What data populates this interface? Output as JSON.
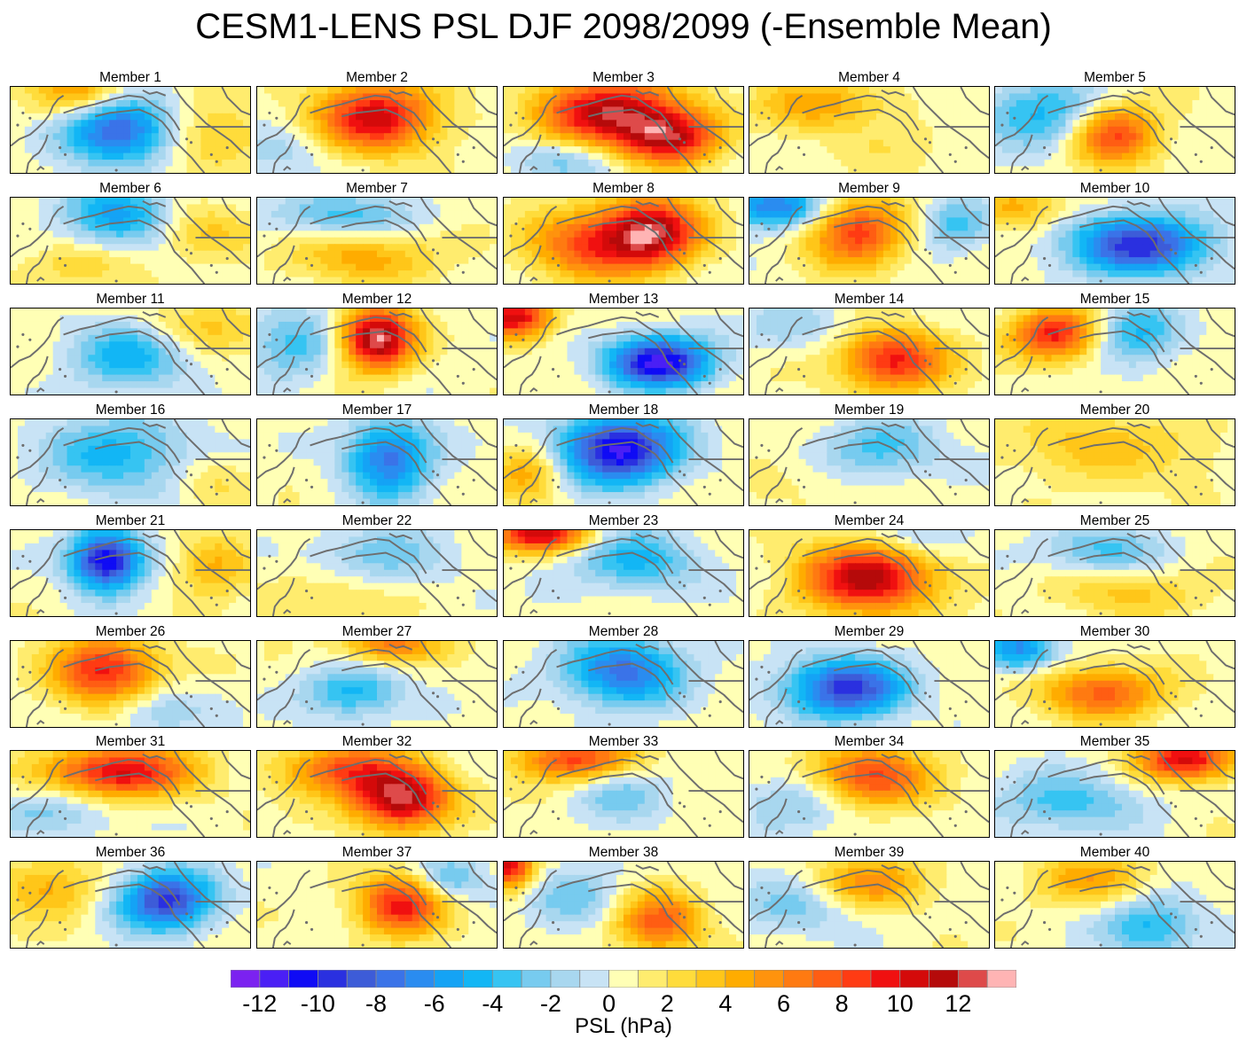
{
  "title": "CESM1-LENS PSL DJF 2098/2099 (-Ensemble Mean)",
  "map_region": "North Pacific / Alaska / western North America",
  "coastline_color": "#6e6e6e",
  "panels": [
    {
      "label": "Member 1",
      "anomalies": [
        {
          "lon": 0.45,
          "lat": 0.5,
          "value": -9,
          "sx": 0.22,
          "sy": 0.4
        },
        {
          "lon": 0.3,
          "lat": 0.05,
          "value": 5,
          "sx": 0.2,
          "sy": 0.3
        },
        {
          "lon": 0.85,
          "lat": 0.6,
          "value": 3,
          "sx": 0.2,
          "sy": 0.4
        }
      ]
    },
    {
      "label": "Member 2",
      "anomalies": [
        {
          "lon": 0.5,
          "lat": 0.35,
          "value": 10,
          "sx": 0.25,
          "sy": 0.4
        },
        {
          "lon": 0.1,
          "lat": 0.8,
          "value": -2,
          "sx": 0.2,
          "sy": 0.3
        }
      ]
    },
    {
      "label": "Member 3",
      "anomalies": [
        {
          "lon": 0.45,
          "lat": 0.3,
          "value": 11,
          "sx": 0.3,
          "sy": 0.4
        },
        {
          "lon": 0.7,
          "lat": 0.6,
          "value": 9,
          "sx": 0.2,
          "sy": 0.3
        },
        {
          "lon": 0.25,
          "lat": 0.85,
          "value": -3,
          "sx": 0.25,
          "sy": 0.25
        }
      ]
    },
    {
      "label": "Member 4",
      "anomalies": [
        {
          "lon": 0.3,
          "lat": 0.2,
          "value": 4,
          "sx": 0.3,
          "sy": 0.3
        },
        {
          "lon": 0.6,
          "lat": 0.7,
          "value": 1,
          "sx": 0.3,
          "sy": 0.3
        },
        {
          "lon": 0.9,
          "lat": 0.2,
          "value": -1,
          "sx": 0.15,
          "sy": 0.3
        }
      ]
    },
    {
      "label": "Member 5",
      "anomalies": [
        {
          "lon": 0.5,
          "lat": 0.55,
          "value": 8,
          "sx": 0.18,
          "sy": 0.35
        },
        {
          "lon": 0.2,
          "lat": 0.3,
          "value": -5,
          "sx": 0.25,
          "sy": 0.4
        }
      ]
    },
    {
      "label": "Member 6",
      "anomalies": [
        {
          "lon": 0.45,
          "lat": 0.2,
          "value": -6,
          "sx": 0.22,
          "sy": 0.35
        },
        {
          "lon": 0.8,
          "lat": 0.4,
          "value": 3,
          "sx": 0.2,
          "sy": 0.3
        },
        {
          "lon": 0.3,
          "lat": 0.8,
          "value": 2,
          "sx": 0.25,
          "sy": 0.25
        }
      ]
    },
    {
      "label": "Member 7",
      "anomalies": [
        {
          "lon": 0.45,
          "lat": 0.7,
          "value": 4,
          "sx": 0.3,
          "sy": 0.3
        },
        {
          "lon": 0.35,
          "lat": 0.2,
          "value": -4,
          "sx": 0.3,
          "sy": 0.25
        }
      ]
    },
    {
      "label": "Member 8",
      "anomalies": [
        {
          "lon": 0.62,
          "lat": 0.4,
          "value": 11,
          "sx": 0.2,
          "sy": 0.4
        },
        {
          "lon": 0.35,
          "lat": 0.55,
          "value": 7,
          "sx": 0.25,
          "sy": 0.4
        }
      ]
    },
    {
      "label": "Member 9",
      "anomalies": [
        {
          "lon": 0.45,
          "lat": 0.4,
          "value": 8,
          "sx": 0.2,
          "sy": 0.4
        },
        {
          "lon": 0.1,
          "lat": 0.1,
          "value": -8,
          "sx": 0.2,
          "sy": 0.25
        },
        {
          "lon": 0.85,
          "lat": 0.3,
          "value": -4,
          "sx": 0.15,
          "sy": 0.3
        }
      ]
    },
    {
      "label": "Member 10",
      "anomalies": [
        {
          "lon": 0.6,
          "lat": 0.55,
          "value": -10,
          "sx": 0.3,
          "sy": 0.35
        },
        {
          "lon": 0.1,
          "lat": 0.1,
          "value": 4,
          "sx": 0.2,
          "sy": 0.25
        }
      ]
    },
    {
      "label": "Member 11",
      "anomalies": [
        {
          "lon": 0.5,
          "lat": 0.55,
          "value": -5,
          "sx": 0.25,
          "sy": 0.4
        },
        {
          "lon": 0.8,
          "lat": 0.2,
          "value": 3,
          "sx": 0.25,
          "sy": 0.3
        }
      ]
    },
    {
      "label": "Member 12",
      "anomalies": [
        {
          "lon": 0.5,
          "lat": 0.35,
          "value": 13,
          "sx": 0.15,
          "sy": 0.35
        },
        {
          "lon": 0.15,
          "lat": 0.4,
          "value": -4,
          "sx": 0.2,
          "sy": 0.4
        }
      ]
    },
    {
      "label": "Member 13",
      "anomalies": [
        {
          "lon": 0.65,
          "lat": 0.62,
          "value": -12,
          "sx": 0.22,
          "sy": 0.3
        },
        {
          "lon": 0.05,
          "lat": 0.1,
          "value": 10,
          "sx": 0.15,
          "sy": 0.25
        }
      ]
    },
    {
      "label": "Member 14",
      "anomalies": [
        {
          "lon": 0.6,
          "lat": 0.6,
          "value": 9,
          "sx": 0.22,
          "sy": 0.35
        },
        {
          "lon": 0.2,
          "lat": 0.2,
          "value": -2,
          "sx": 0.25,
          "sy": 0.3
        }
      ]
    },
    {
      "label": "Member 15",
      "anomalies": [
        {
          "lon": 0.25,
          "lat": 0.3,
          "value": 9,
          "sx": 0.18,
          "sy": 0.3
        },
        {
          "lon": 0.6,
          "lat": 0.3,
          "value": -5,
          "sx": 0.18,
          "sy": 0.35
        }
      ]
    },
    {
      "label": "Member 16",
      "anomalies": [
        {
          "lon": 0.45,
          "lat": 0.4,
          "value": -5,
          "sx": 0.3,
          "sy": 0.45
        },
        {
          "lon": 0.85,
          "lat": 0.7,
          "value": 2,
          "sx": 0.15,
          "sy": 0.3
        }
      ]
    },
    {
      "label": "Member 17",
      "anomalies": [
        {
          "lon": 0.55,
          "lat": 0.45,
          "value": -8,
          "sx": 0.18,
          "sy": 0.45
        }
      ]
    },
    {
      "label": "Member 18",
      "anomalies": [
        {
          "lon": 0.48,
          "lat": 0.35,
          "value": -12,
          "sx": 0.25,
          "sy": 0.4
        },
        {
          "lon": 0.1,
          "lat": 0.6,
          "value": 4,
          "sx": 0.15,
          "sy": 0.35
        }
      ]
    },
    {
      "label": "Member 19",
      "anomalies": [
        {
          "lon": 0.55,
          "lat": 0.35,
          "value": -4,
          "sx": 0.25,
          "sy": 0.35
        },
        {
          "lon": 0.2,
          "lat": 0.7,
          "value": 1,
          "sx": 0.25,
          "sy": 0.3
        }
      ]
    },
    {
      "label": "Member 20",
      "anomalies": [
        {
          "lon": 0.4,
          "lat": 0.3,
          "value": 3,
          "sx": 0.35,
          "sy": 0.4
        },
        {
          "lon": 0.8,
          "lat": 0.5,
          "value": 1,
          "sx": 0.2,
          "sy": 0.4
        }
      ]
    },
    {
      "label": "Member 21",
      "anomalies": [
        {
          "lon": 0.4,
          "lat": 0.35,
          "value": -12,
          "sx": 0.15,
          "sy": 0.35
        },
        {
          "lon": 0.85,
          "lat": 0.4,
          "value": 4,
          "sx": 0.15,
          "sy": 0.35
        }
      ]
    },
    {
      "label": "Member 22",
      "anomalies": [
        {
          "lon": 0.5,
          "lat": 0.3,
          "value": -3,
          "sx": 0.3,
          "sy": 0.35
        },
        {
          "lon": 0.3,
          "lat": 0.75,
          "value": 2,
          "sx": 0.25,
          "sy": 0.3
        }
      ]
    },
    {
      "label": "Member 23",
      "anomalies": [
        {
          "lon": 0.15,
          "lat": 0.05,
          "value": 10,
          "sx": 0.2,
          "sy": 0.2
        },
        {
          "lon": 0.55,
          "lat": 0.35,
          "value": -5,
          "sx": 0.25,
          "sy": 0.35
        }
      ]
    },
    {
      "label": "Member 24",
      "anomalies": [
        {
          "lon": 0.5,
          "lat": 0.55,
          "value": 11,
          "sx": 0.28,
          "sy": 0.4
        },
        {
          "lon": 0.7,
          "lat": 0.1,
          "value": -3,
          "sx": 0.2,
          "sy": 0.25
        }
      ]
    },
    {
      "label": "Member 25",
      "anomalies": [
        {
          "lon": 0.45,
          "lat": 0.25,
          "value": -4,
          "sx": 0.25,
          "sy": 0.3
        },
        {
          "lon": 0.55,
          "lat": 0.7,
          "value": 3,
          "sx": 0.3,
          "sy": 0.3
        }
      ]
    },
    {
      "label": "Member 26",
      "anomalies": [
        {
          "lon": 0.4,
          "lat": 0.35,
          "value": 9,
          "sx": 0.22,
          "sy": 0.4
        },
        {
          "lon": 0.6,
          "lat": 0.8,
          "value": -3,
          "sx": 0.2,
          "sy": 0.3
        }
      ]
    },
    {
      "label": "Member 27",
      "anomalies": [
        {
          "lon": 0.4,
          "lat": 0.6,
          "value": -5,
          "sx": 0.2,
          "sy": 0.3
        },
        {
          "lon": 0.55,
          "lat": 0.05,
          "value": 6,
          "sx": 0.2,
          "sy": 0.2
        }
      ]
    },
    {
      "label": "Member 28",
      "anomalies": [
        {
          "lon": 0.5,
          "lat": 0.35,
          "value": -8,
          "sx": 0.25,
          "sy": 0.4
        }
      ]
    },
    {
      "label": "Member 29",
      "anomalies": [
        {
          "lon": 0.4,
          "lat": 0.55,
          "value": -10,
          "sx": 0.25,
          "sy": 0.35
        }
      ]
    },
    {
      "label": "Member 30",
      "anomalies": [
        {
          "lon": 0.45,
          "lat": 0.6,
          "value": 7,
          "sx": 0.25,
          "sy": 0.3
        },
        {
          "lon": 0.1,
          "lat": 0.1,
          "value": -7,
          "sx": 0.15,
          "sy": 0.25
        }
      ]
    },
    {
      "label": "Member 31",
      "anomalies": [
        {
          "lon": 0.45,
          "lat": 0.25,
          "value": 10,
          "sx": 0.3,
          "sy": 0.3
        },
        {
          "lon": 0.2,
          "lat": 0.7,
          "value": -3,
          "sx": 0.25,
          "sy": 0.3
        }
      ]
    },
    {
      "label": "Member 32",
      "anomalies": [
        {
          "lon": 0.6,
          "lat": 0.55,
          "value": 12,
          "sx": 0.2,
          "sy": 0.35
        },
        {
          "lon": 0.35,
          "lat": 0.2,
          "value": 7,
          "sx": 0.25,
          "sy": 0.3
        }
      ]
    },
    {
      "label": "Member 33",
      "anomalies": [
        {
          "lon": 0.3,
          "lat": 0.1,
          "value": 8,
          "sx": 0.25,
          "sy": 0.25
        },
        {
          "lon": 0.5,
          "lat": 0.5,
          "value": -3,
          "sx": 0.2,
          "sy": 0.35
        }
      ]
    },
    {
      "label": "Member 34",
      "anomalies": [
        {
          "lon": 0.5,
          "lat": 0.3,
          "value": 8,
          "sx": 0.25,
          "sy": 0.35
        },
        {
          "lon": 0.2,
          "lat": 0.6,
          "value": -3,
          "sx": 0.25,
          "sy": 0.35
        }
      ]
    },
    {
      "label": "Member 35",
      "anomalies": [
        {
          "lon": 0.8,
          "lat": 0.1,
          "value": 10,
          "sx": 0.2,
          "sy": 0.25
        },
        {
          "lon": 0.3,
          "lat": 0.6,
          "value": -4,
          "sx": 0.3,
          "sy": 0.35
        }
      ]
    },
    {
      "label": "Member 36",
      "anomalies": [
        {
          "lon": 0.65,
          "lat": 0.45,
          "value": -10,
          "sx": 0.2,
          "sy": 0.35
        },
        {
          "lon": 0.15,
          "lat": 0.3,
          "value": 4,
          "sx": 0.2,
          "sy": 0.35
        }
      ]
    },
    {
      "label": "Member 37",
      "anomalies": [
        {
          "lon": 0.6,
          "lat": 0.5,
          "value": 9,
          "sx": 0.18,
          "sy": 0.35
        },
        {
          "lon": 0.8,
          "lat": 0.2,
          "value": -4,
          "sx": 0.15,
          "sy": 0.25
        }
      ]
    },
    {
      "label": "Member 38",
      "anomalies": [
        {
          "lon": 0.65,
          "lat": 0.7,
          "value": 7,
          "sx": 0.18,
          "sy": 0.35
        },
        {
          "lon": 0.02,
          "lat": 0.05,
          "value": 10,
          "sx": 0.1,
          "sy": 0.25
        },
        {
          "lon": 0.3,
          "lat": 0.4,
          "value": -3,
          "sx": 0.2,
          "sy": 0.35
        }
      ]
    },
    {
      "label": "Member 39",
      "anomalies": [
        {
          "lon": 0.5,
          "lat": 0.25,
          "value": 5,
          "sx": 0.25,
          "sy": 0.3
        },
        {
          "lon": 0.2,
          "lat": 0.5,
          "value": -3,
          "sx": 0.25,
          "sy": 0.35
        }
      ]
    },
    {
      "label": "Member 40",
      "anomalies": [
        {
          "lon": 0.65,
          "lat": 0.75,
          "value": -5,
          "sx": 0.2,
          "sy": 0.35
        },
        {
          "lon": 0.4,
          "lat": 0.2,
          "value": 4,
          "sx": 0.25,
          "sy": 0.3
        }
      ]
    }
  ],
  "colorbar": {
    "title": "PSL (hPa)",
    "colors": [
      "#7b22f0",
      "#4a1ff5",
      "#0f0bf5",
      "#2a30e0",
      "#3d5cd8",
      "#3a73e8",
      "#2a8cf0",
      "#14a3f5",
      "#12b6f5",
      "#36c4f2",
      "#77cbef",
      "#a8d7ef",
      "#c8e3f5",
      "#ffffb5",
      "#ffec6e",
      "#ffdc3b",
      "#ffc619",
      "#ffac00",
      "#ff930d",
      "#ff7a11",
      "#ff5d13",
      "#ff3b13",
      "#f01010",
      "#d40a0a",
      "#b50a0a",
      "#de4a4a",
      "#ffb4b4"
    ],
    "tick_labels": [
      "-12",
      "-10",
      "-8",
      "-6",
      "-4",
      "-2",
      "0",
      "2",
      "4",
      "6",
      "8",
      "10",
      "12"
    ],
    "range": [
      -13.5,
      13.5
    ],
    "step": 1
  }
}
